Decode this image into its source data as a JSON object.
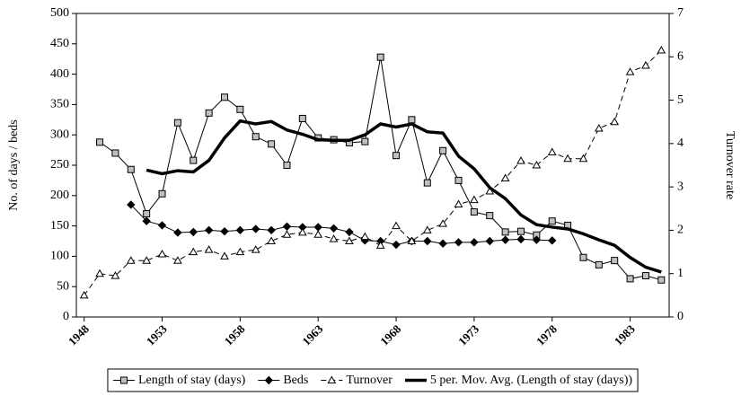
{
  "chart_data": {
    "type": "line",
    "ylabel": "No. of days / beds",
    "y2label": "Turnover rate",
    "xlim": [
      1947.5,
      1985.5
    ],
    "xticks": [
      1948,
      1953,
      1958,
      1963,
      1968,
      1973,
      1978,
      1983
    ],
    "ylim": [
      0,
      500
    ],
    "yticks": [
      0,
      50,
      100,
      150,
      200,
      250,
      300,
      350,
      400,
      450,
      500
    ],
    "y2lim": [
      0,
      7
    ],
    "y2ticks": [
      0,
      1,
      2,
      3,
      4,
      5,
      6,
      7
    ],
    "legend": "bottom",
    "series": [
      {
        "name": "Length of stay (days)",
        "color": "#000000",
        "marker": "square",
        "x": [
          1949,
          1950,
          1951,
          1952,
          1953,
          1954,
          1955,
          1956,
          1957,
          1958,
          1959,
          1960,
          1961,
          1962,
          1963,
          1964,
          1965,
          1966,
          1967,
          1968,
          1969,
          1970,
          1971,
          1972,
          1973,
          1974,
          1975,
          1976,
          1977,
          1978,
          1979,
          1980,
          1981,
          1982,
          1983,
          1984,
          1985
        ],
        "values": [
          288,
          270,
          243,
          170,
          203,
          320,
          258,
          336,
          362,
          342,
          297,
          285,
          250,
          327,
          295,
          292,
          287,
          289,
          428,
          266,
          325,
          221,
          274,
          225,
          173,
          167,
          140,
          141,
          135,
          158,
          151,
          98,
          86,
          93,
          63,
          68,
          61
        ]
      },
      {
        "name": "Beds",
        "color": "#000000",
        "marker": "diamond",
        "x": [
          1951,
          1952,
          1953,
          1954,
          1955,
          1956,
          1957,
          1958,
          1959,
          1960,
          1961,
          1962,
          1963,
          1964,
          1965,
          1966,
          1967,
          1968,
          1969,
          1970,
          1971,
          1972,
          1973,
          1974,
          1975,
          1976,
          1977,
          1978
        ],
        "values": [
          185,
          158,
          151,
          139,
          140,
          143,
          141,
          143,
          145,
          143,
          149,
          148,
          148,
          146,
          140,
          126,
          125,
          119,
          125,
          125,
          121,
          123,
          123,
          125,
          127,
          128,
          127,
          126
        ]
      },
      {
        "name": "Turnover",
        "color": "#000000",
        "marker": "triangle",
        "dash": true,
        "axis": "y2",
        "x": [
          1948,
          1949,
          1950,
          1951,
          1952,
          1953,
          1954,
          1955,
          1956,
          1957,
          1958,
          1959,
          1960,
          1961,
          1962,
          1963,
          1964,
          1965,
          1966,
          1967,
          1968,
          1969,
          1970,
          1971,
          1972,
          1973,
          1974,
          1975,
          1976,
          1977,
          1978,
          1979,
          1980,
          1981,
          1982,
          1983,
          1984,
          1985
        ],
        "values": [
          0.5,
          1.0,
          0.95,
          1.3,
          1.3,
          1.45,
          1.3,
          1.5,
          1.55,
          1.4,
          1.5,
          1.55,
          1.75,
          1.9,
          1.95,
          1.9,
          1.8,
          1.75,
          1.85,
          1.65,
          2.1,
          1.75,
          2.0,
          2.15,
          2.6,
          2.7,
          2.9,
          3.2,
          3.6,
          3.5,
          3.8,
          3.65,
          3.65,
          4.35,
          4.5,
          5.65,
          5.8,
          6.15
        ]
      },
      {
        "name": "5 per. Mov. Avg. (Length of stay (days))",
        "color": "#000000",
        "thick": true,
        "x": [
          1952,
          1953,
          1954,
          1955,
          1956,
          1957,
          1958,
          1959,
          1960,
          1961,
          1962,
          1963,
          1964,
          1965,
          1966,
          1967,
          1968,
          1969,
          1970,
          1971,
          1972,
          1973,
          1974,
          1975,
          1976,
          1977,
          1978,
          1979,
          1980,
          1981,
          1982,
          1983,
          1984,
          1985
        ],
        "values": [
          242,
          236,
          241,
          239,
          258,
          295,
          323,
          318,
          322,
          308,
          301,
          292,
          291,
          291,
          300,
          318,
          313,
          318,
          305,
          303,
          265,
          244,
          213,
          195,
          168,
          152,
          148,
          145,
          137,
          127,
          118,
          98,
          82,
          74
        ]
      }
    ]
  }
}
